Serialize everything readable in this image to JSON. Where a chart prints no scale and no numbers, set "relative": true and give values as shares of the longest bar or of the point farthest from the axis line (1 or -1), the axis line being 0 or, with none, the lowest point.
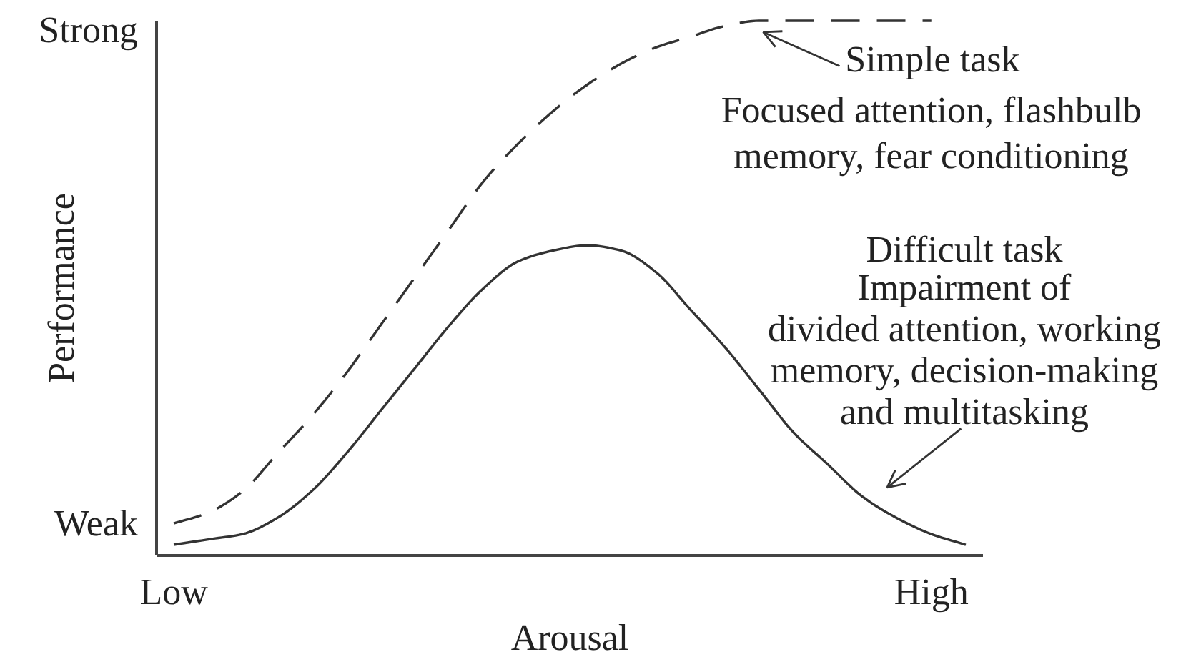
{
  "chart_data": {
    "type": "line",
    "relative": true,
    "xlabel": "Arousal",
    "ylabel": "Performance",
    "categories": [
      "Low",
      null,
      null,
      null,
      null,
      null,
      null,
      null,
      null,
      null,
      null,
      null,
      null,
      null,
      null,
      null,
      null,
      null,
      null,
      null,
      null,
      null,
      "High",
      null
    ],
    "series": [
      {
        "color": "#333333",
        "line_style": "dashed",
        "values": [
          0.06,
          0.08,
          0.12,
          0.19,
          0.26,
          0.34,
          0.43,
          0.52,
          0.61,
          0.7,
          0.77,
          0.83,
          0.88,
          0.92,
          0.95,
          0.97,
          0.99,
          1.0,
          1.0,
          1.0,
          1.0,
          1.0,
          1.0,
          null
        ]
      },
      {
        "color": "#333333",
        "line_style": "solid",
        "values": [
          0.02,
          0.03,
          0.04,
          0.07,
          0.12,
          0.19,
          0.27,
          0.35,
          0.43,
          0.5,
          0.55,
          0.57,
          0.58,
          0.57,
          0.53,
          0.46,
          0.39,
          0.31,
          0.23,
          0.17,
          0.11,
          0.07,
          0.04,
          0.02
        ]
      }
    ],
    "annotations": [
      "Strong",
      "Simple task",
      "Focused attention, flashbulb\nmemory, fear conditioning",
      "Difficult task",
      "Impairment of\ndivided attention, working\nmemory, decision-making\nand multitasking",
      "Weak"
    ]
  }
}
